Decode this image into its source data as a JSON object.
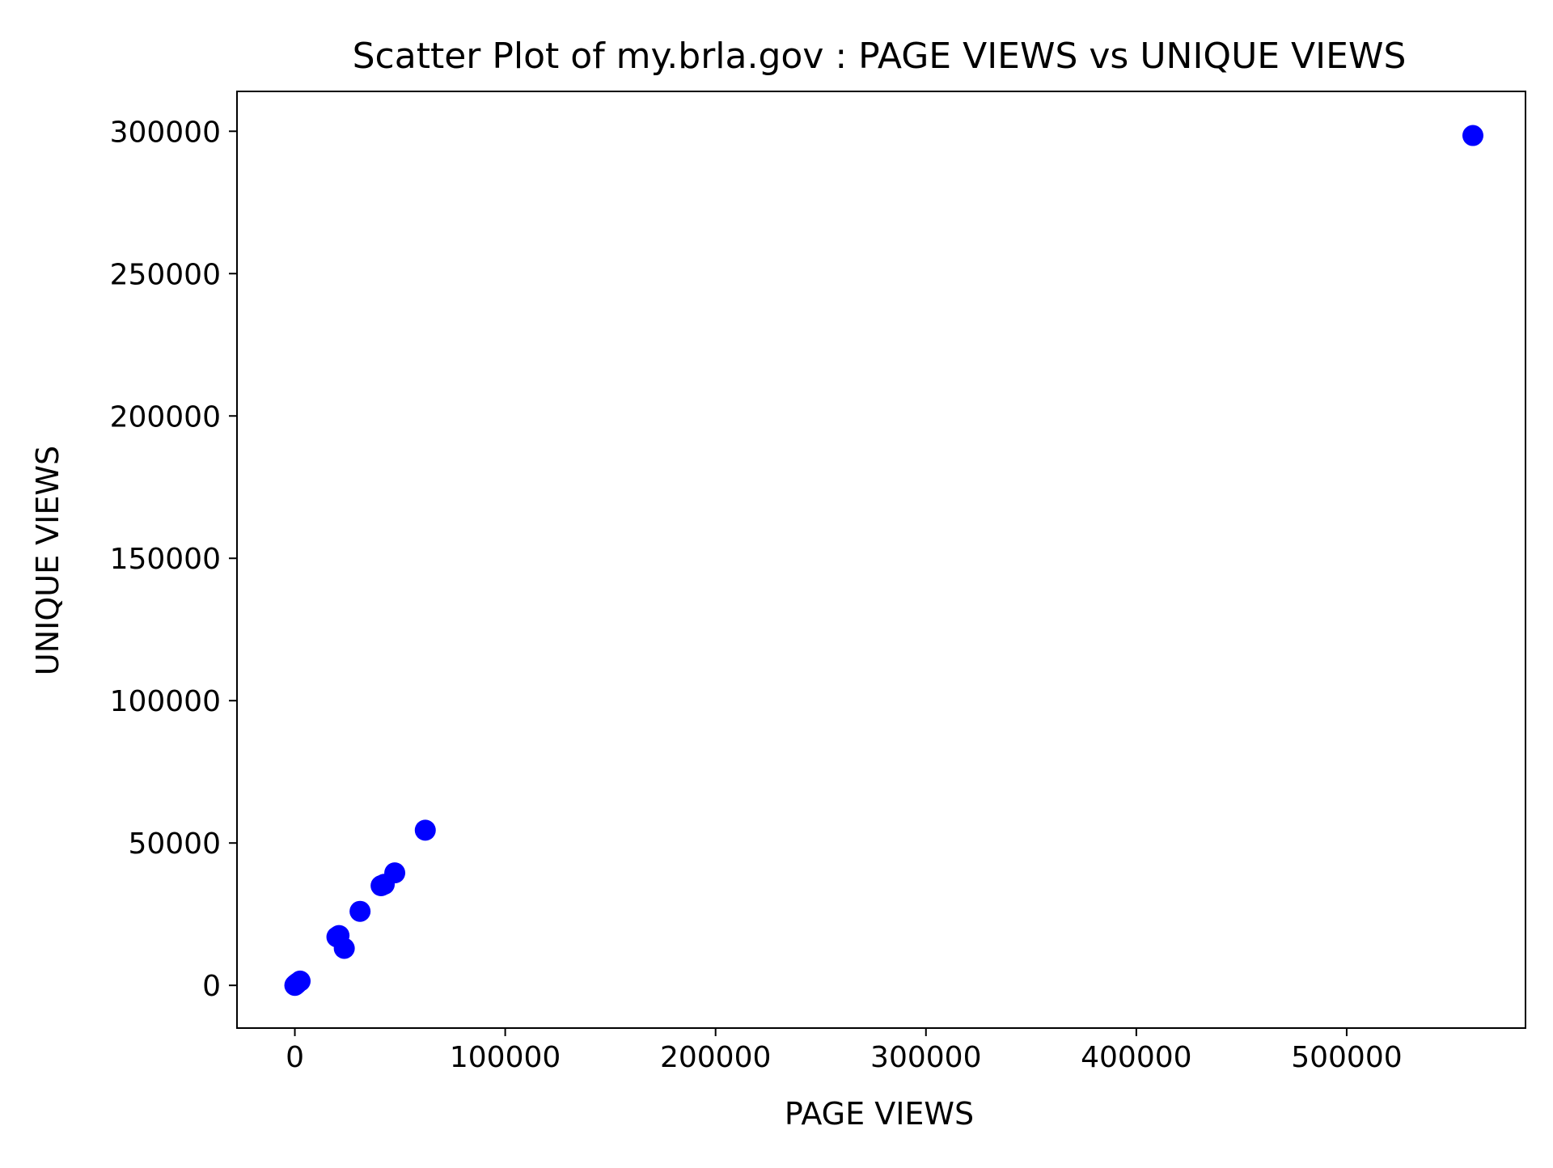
{
  "chart_data": {
    "type": "scatter",
    "title": "Scatter Plot of my.brla.gov : PAGE VIEWS vs UNIQUE VIEWS",
    "xlabel": "PAGE VIEWS",
    "ylabel": "UNIQUE VIEWS",
    "xlim": [
      -27500,
      585000
    ],
    "ylim": [
      -15000,
      314000
    ],
    "xticks": [
      0,
      100000,
      200000,
      300000,
      400000,
      500000
    ],
    "xtick_labels": [
      "0",
      "100000",
      "200000",
      "300000",
      "400000",
      "500000"
    ],
    "yticks": [
      0,
      50000,
      100000,
      150000,
      200000,
      250000,
      300000
    ],
    "ytick_labels": [
      "0",
      "50000",
      "100000",
      "150000",
      "200000",
      "250000",
      "300000"
    ],
    "grid": false,
    "color": "#0000ff",
    "points": [
      {
        "x": 0,
        "y": 0
      },
      {
        "x": 200,
        "y": 150
      },
      {
        "x": 400,
        "y": 300
      },
      {
        "x": 800,
        "y": 500
      },
      {
        "x": 1200,
        "y": 800
      },
      {
        "x": 2500,
        "y": 1500
      },
      {
        "x": 20000,
        "y": 17000
      },
      {
        "x": 21000,
        "y": 17500
      },
      {
        "x": 23500,
        "y": 13000
      },
      {
        "x": 31000,
        "y": 26000
      },
      {
        "x": 41000,
        "y": 35000
      },
      {
        "x": 42500,
        "y": 35500
      },
      {
        "x": 47500,
        "y": 39500
      },
      {
        "x": 62000,
        "y": 54500
      },
      {
        "x": 560000,
        "y": 298500
      }
    ]
  }
}
